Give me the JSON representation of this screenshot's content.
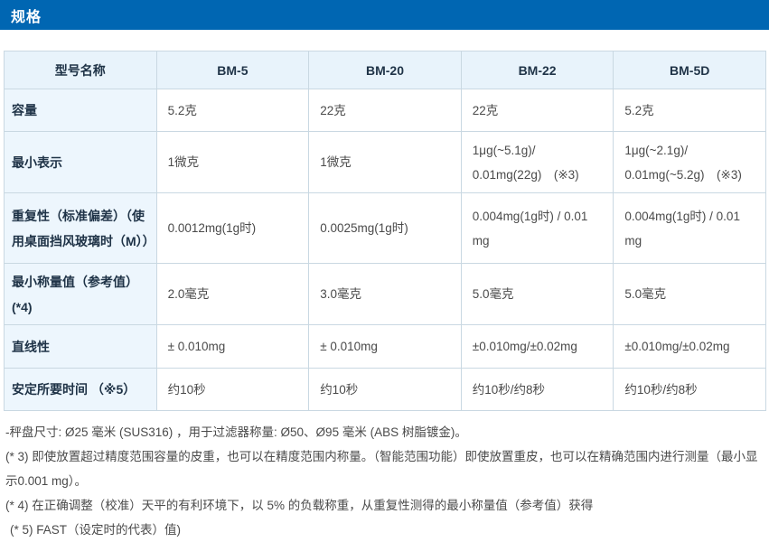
{
  "page": {
    "section_title": "规格"
  },
  "colors": {
    "title_bar_blue": "#0066b2",
    "table_header_bg": "#e8f3fb",
    "row_label_bg": "#edf6fd",
    "table_border": "#c9d8e2",
    "header_text": "#1f3347",
    "body_text": "#4a4a4a"
  },
  "table": {
    "columns": [
      "型号名称",
      "BM-5",
      "BM-20",
      "BM-22",
      "BM-5D"
    ],
    "rows": [
      {
        "label": "容量",
        "values": [
          "5.2克",
          "22克",
          "22克",
          "5.2克"
        ]
      },
      {
        "label": "最小表示",
        "values": [
          "1微克",
          "1微克",
          "1μg(~5.1g)/ 0.01mg(22g)　(※3)",
          "1μg(~2.1g)/ 0.01mg(~5.2g)　(※3)"
        ]
      },
      {
        "label": "重复性（标准偏差）（使用桌面挡风玻璃时（M））",
        "values": [
          "0.0012mg(1g时)",
          "0.0025mg(1g时)",
          "0.004mg(1g时) / 0.01 mg",
          "0.004mg(1g时) / 0.01 mg"
        ]
      },
      {
        "label": "最小称量值（参考值） (*4)",
        "values": [
          "2.0毫克",
          "3.0毫克",
          "5.0毫克",
          "5.0毫克"
        ]
      },
      {
        "label": "直线性",
        "values": [
          "± 0.010mg",
          "± 0.010mg",
          "±0.010mg/±0.02mg",
          "±0.010mg/±0.02mg"
        ]
      },
      {
        "label": "安定所要时间 （※5）",
        "values": [
          "约10秒",
          "约10秒",
          "约10秒/约8秒",
          "约10秒/约8秒"
        ]
      }
    ]
  },
  "notes": [
    "-秤盘尺寸: Ø25 毫米 (SUS316) ，用于过滤器称量: Ø50、Ø95 毫米 (ABS 树脂镀金)。",
    "(* 3) 即使放置超过精度范围容量的皮重，也可以在精度范围内称量。（智能范围功能）即使放置重皮，也可以在精确范围内进行测量（最小显示0.001 mg）。",
    "(* 4) 在正确调整（校准）天平的有利环境下，以 5% 的负载称重，从重复性测得的最小称量值（参考值）获得",
    "(* 5) FAST（设定时的代表）值)"
  ]
}
